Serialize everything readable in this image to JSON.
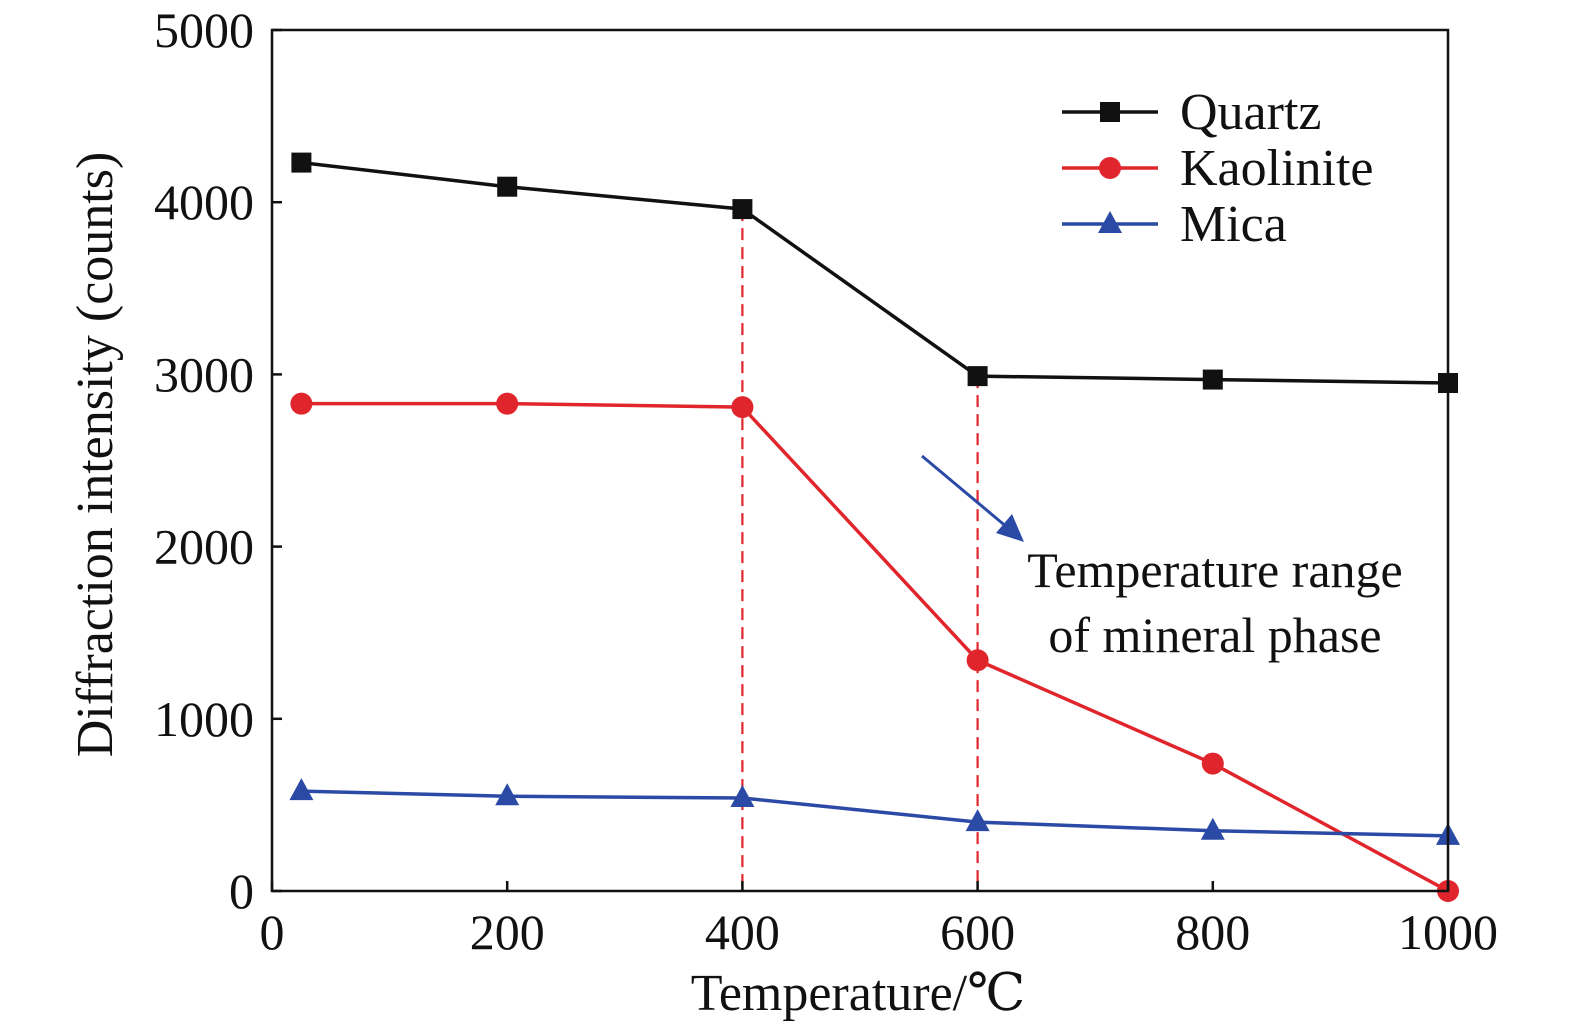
{
  "chart_data": {
    "type": "line",
    "xlabel": "Temperature/℃",
    "ylabel": "Diffraction intensity (counts)",
    "xlim": [
      0,
      1000
    ],
    "ylim": [
      0,
      5000
    ],
    "xticks": [
      "0",
      "200",
      "400",
      "600",
      "800",
      "1000"
    ],
    "yticks": [
      "0",
      "1000",
      "2000",
      "3000",
      "4000",
      "5000"
    ],
    "x": [
      25,
      200,
      400,
      600,
      800,
      1000
    ],
    "series": [
      {
        "name": "Quartz",
        "color": "#111111",
        "marker": "square",
        "values": [
          4230,
          4090,
          3960,
          2990,
          2970,
          2950
        ]
      },
      {
        "name": "Kaolinite",
        "color": "#e0262c",
        "marker": "circle",
        "values": [
          2830,
          2830,
          2810,
          1340,
          740,
          0
        ]
      },
      {
        "name": "Mica",
        "color": "#2b4aa6",
        "marker": "triangle",
        "values": [
          580,
          550,
          540,
          400,
          350,
          320
        ]
      }
    ],
    "reference_lines_x": [
      400,
      600
    ],
    "reference_line_color": "#e0262c",
    "annotation": {
      "lines": [
        "Temperature range",
        "of mineral phase"
      ],
      "arrow_color": "#2b4aa6"
    },
    "legend_position": "top-right",
    "grid": false
  }
}
